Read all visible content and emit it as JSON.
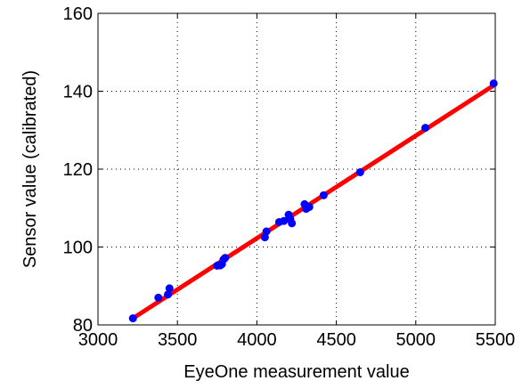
{
  "chart_data": {
    "type": "scatter",
    "xlabel": "EyeOne measurement value",
    "ylabel": "Sensor value (calibrated)",
    "xlim": [
      3000,
      5500
    ],
    "ylim": [
      80,
      160
    ],
    "xticks": [
      3000,
      3500,
      4000,
      4500,
      5000,
      5500
    ],
    "yticks": [
      80,
      100,
      120,
      140,
      160
    ],
    "grid": true,
    "colors": {
      "points": "#0000ff",
      "fit": "#ff0000"
    },
    "series": [
      {
        "type": "scatter",
        "x": [
          3220,
          3380,
          3440,
          3450,
          3750,
          3770,
          3780,
          3790,
          3800,
          4050,
          4060,
          4140,
          4170,
          4200,
          4210,
          4220,
          4300,
          4310,
          4330,
          4420,
          4650,
          5060,
          5490
        ],
        "y": [
          81.7,
          87.0,
          87.8,
          89.4,
          95.2,
          95.3,
          95.6,
          96.8,
          97.2,
          102.5,
          104.0,
          106.4,
          106.7,
          108.3,
          107.2,
          106.1,
          111.0,
          109.8,
          110.3,
          113.3,
          119.2,
          130.6,
          142.0
        ]
      },
      {
        "type": "line",
        "x": [
          3220,
          5490
        ],
        "y": [
          81.7,
          141.5
        ]
      }
    ]
  }
}
